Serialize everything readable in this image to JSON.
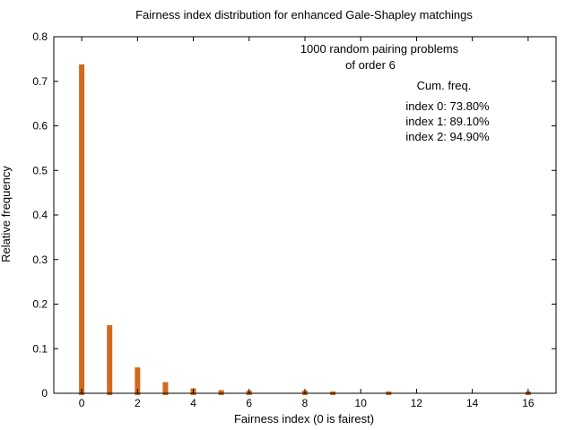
{
  "chart_data": {
    "type": "bar",
    "title": "Fairness index distribution for enhanced Gale-Shapley matchings",
    "xlabel": "Fairness index (0 is fairest)",
    "ylabel": "Relative frequency",
    "xlim": [
      -1,
      17
    ],
    "ylim": [
      0,
      0.8
    ],
    "xticks": [
      0,
      2,
      4,
      6,
      8,
      10,
      12,
      14,
      16
    ],
    "yticks": [
      0,
      0.1,
      0.2,
      0.3,
      0.4,
      0.5,
      0.6,
      0.7,
      0.8
    ],
    "ytick_labels": [
      "0",
      "0.1",
      "0.2",
      "0.3",
      "0.4",
      "0.5",
      "0.6",
      "0.7",
      "0.8"
    ],
    "bar_color": "#d2691e",
    "x": [
      0,
      1,
      2,
      3,
      4,
      5,
      6,
      8,
      9,
      11,
      16
    ],
    "values": [
      0.738,
      0.153,
      0.058,
      0.025,
      0.011,
      0.007,
      0.006,
      0.006,
      0.004,
      0.004,
      0.004
    ],
    "annotations": {
      "subtitle_line1": "1000 random pairing problems",
      "subtitle_line2": "of order 6",
      "cum_header": "Cum. freq.",
      "cum_lines": [
        "index 0: 73.80%",
        "index 1: 89.10%",
        "index 2: 94.90%"
      ]
    }
  }
}
